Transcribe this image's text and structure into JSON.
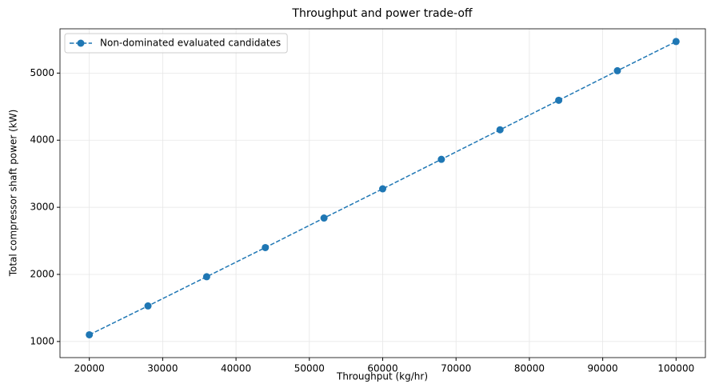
{
  "chart_data": {
    "type": "line",
    "title": "Throughput and power trade-off",
    "xlabel": "Throughput (kg/hr)",
    "ylabel": "Total compressor shaft power (kW)",
    "x": [
      20000,
      28000,
      36000,
      44000,
      52000,
      60000,
      68000,
      76000,
      84000,
      92000,
      100000
    ],
    "series": [
      {
        "name": "Non-dominated evaluated candidates",
        "color": "#1f77b4",
        "values": [
          1100,
          1530,
          1965,
          2400,
          2840,
          3275,
          3715,
          4155,
          4595,
          5035,
          5470
        ]
      }
    ],
    "xlim": [
      16000,
      104000
    ],
    "ylim": [
      760,
      5660
    ],
    "xticks": [
      20000,
      30000,
      40000,
      50000,
      60000,
      70000,
      80000,
      90000,
      100000
    ],
    "yticks": [
      1000,
      2000,
      3000,
      4000,
      5000
    ],
    "grid": true,
    "legend": "upper left"
  }
}
